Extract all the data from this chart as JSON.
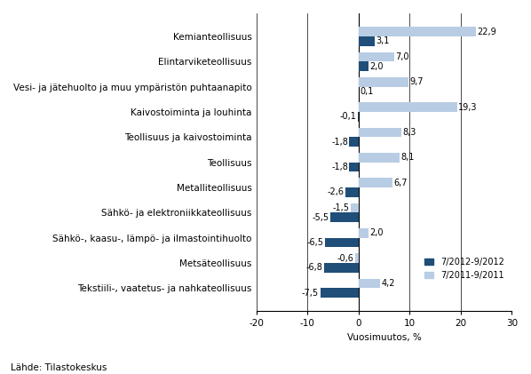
{
  "categories": [
    "Kemianteollisuus",
    "Elintarviketeollisuus",
    "Vesi- ja jätehuolto ja muu ympäristön puhtaanapito",
    "Kaivostoiminta ja louhinta",
    "Teollisuus ja kaivostoiminta",
    "Teollisuus",
    "Metalliteollisuus",
    "Sähkö- ja elektroniikkateollisuus",
    "Sähkö-, kaasu-, lämpö- ja ilmastointihuolto",
    "Metsäteollisuus",
    "Tekstiili-, vaatetus- ja nahkateollisuus"
  ],
  "values_2012": [
    3.1,
    2.0,
    0.1,
    -0.1,
    -1.8,
    -1.8,
    -2.6,
    -5.5,
    -6.5,
    -6.8,
    -7.5
  ],
  "values_2011": [
    22.9,
    7.0,
    9.7,
    19.3,
    8.3,
    8.1,
    6.7,
    -1.5,
    2.0,
    -0.6,
    4.2
  ],
  "color_2012": "#1F4E79",
  "color_2011": "#B8CCE4",
  "xlabel": "Vuosimuutos, %",
  "legend_2012": "7/2012-9/2012",
  "legend_2011": "7/2011-9/2011",
  "source": "Lähde: Tilastokeskus",
  "xlim": [
    -20,
    30
  ],
  "xticks": [
    -20,
    -10,
    0,
    10,
    20,
    30
  ],
  "bar_height": 0.38,
  "label_fontsize": 7,
  "tick_fontsize": 7.5,
  "ytick_fontsize": 7.5
}
